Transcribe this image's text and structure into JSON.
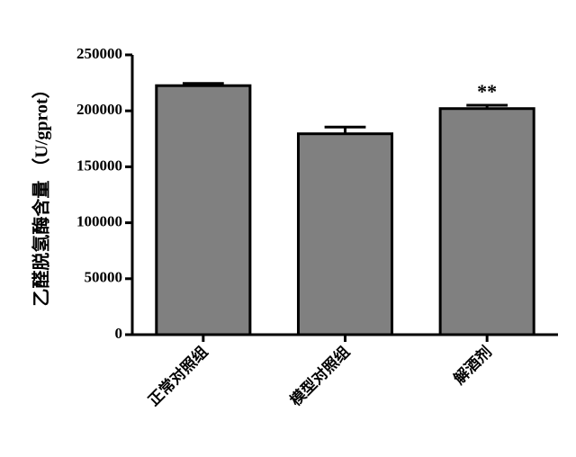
{
  "chart_data": {
    "type": "bar",
    "y_label": "乙醛脱氢酶含量 （U/gprot）",
    "categories": [
      "正常对照组",
      "模型对照组",
      "解酒剂"
    ],
    "values": [
      222500,
      179500,
      202000
    ],
    "errors": [
      2000,
      6000,
      3000
    ],
    "color": "#808080",
    "ylim": [
      0,
      250000
    ],
    "yticks": [
      0,
      50000,
      100000,
      150000,
      200000,
      250000
    ],
    "annotations": [
      {
        "category": "解酒剂",
        "text": "**"
      }
    ]
  }
}
